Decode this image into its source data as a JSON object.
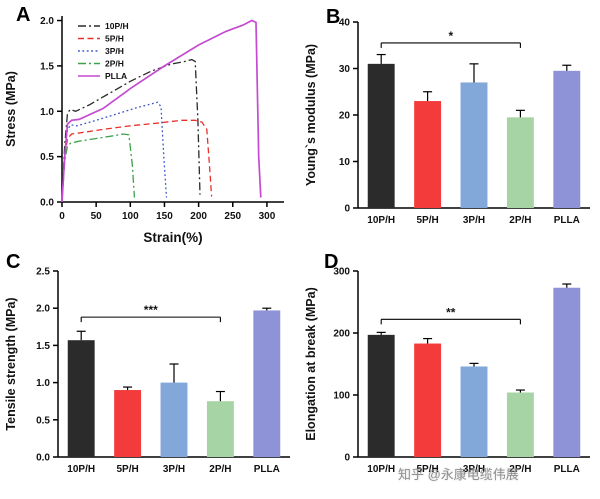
{
  "watermark": "知乎 @永康电缆伟展",
  "panels": [
    {
      "label": "A"
    },
    {
      "label": "B"
    },
    {
      "label": "C"
    },
    {
      "label": "D"
    }
  ],
  "chart_data": [
    {
      "id": "A",
      "type": "line",
      "title": "",
      "xlabel": "Strain(%)",
      "ylabel": "Stress (MPa)",
      "xlim": [
        0,
        325
      ],
      "ylim": [
        0,
        2.05
      ],
      "xticks": [
        0,
        50,
        100,
        150,
        200,
        250,
        300
      ],
      "yticks": [
        0,
        0.5,
        1.0,
        1.5,
        2.0
      ],
      "ydecimals": 1,
      "legend_position": "top-left",
      "series": [
        {
          "name": "10P/H",
          "color": "#2a2a2a",
          "style": "dashdot",
          "x": [
            0,
            4,
            8,
            12,
            20,
            40,
            70,
            100,
            130,
            160,
            180,
            190,
            195,
            199,
            202
          ],
          "y": [
            0,
            0.62,
            0.98,
            1.02,
            1.0,
            1.07,
            1.2,
            1.33,
            1.44,
            1.52,
            1.55,
            1.57,
            1.55,
            0.9,
            0.08
          ]
        },
        {
          "name": "5P/H",
          "color": "#e8302a",
          "style": "dashed",
          "x": [
            0,
            4,
            8,
            14,
            25,
            60,
            100,
            140,
            175,
            195,
            205,
            212,
            216,
            219
          ],
          "y": [
            0,
            0.5,
            0.7,
            0.75,
            0.76,
            0.8,
            0.84,
            0.87,
            0.9,
            0.9,
            0.88,
            0.8,
            0.4,
            0.06
          ]
        },
        {
          "name": "3P/H",
          "color": "#3c56c8",
          "style": "dotted",
          "x": [
            0,
            4,
            8,
            13,
            22,
            50,
            80,
            110,
            130,
            140,
            145,
            149,
            153
          ],
          "y": [
            0,
            0.55,
            0.8,
            0.85,
            0.84,
            0.9,
            0.97,
            1.04,
            1.08,
            1.1,
            1.05,
            0.5,
            0.05
          ]
        },
        {
          "name": "2P/H",
          "color": "#3aa34a",
          "style": "dashdot",
          "x": [
            0,
            4,
            8,
            13,
            25,
            50,
            75,
            90,
            98,
            103,
            106
          ],
          "y": [
            0,
            0.45,
            0.62,
            0.65,
            0.67,
            0.7,
            0.73,
            0.75,
            0.74,
            0.4,
            0.05
          ]
        },
        {
          "name": "PLLA",
          "color": "#c44bd1",
          "style": "solid",
          "x": [
            0,
            4,
            8,
            14,
            25,
            60,
            100,
            150,
            200,
            240,
            265,
            278,
            284,
            288,
            291
          ],
          "y": [
            0,
            0.5,
            0.86,
            0.9,
            0.91,
            1.03,
            1.25,
            1.5,
            1.73,
            1.88,
            1.95,
            2.0,
            1.98,
            0.5,
            0.05
          ]
        }
      ]
    },
    {
      "id": "B",
      "type": "bar",
      "ylabel": "Young`s modulus (MPa)",
      "categories": [
        "10P/H",
        "5P/H",
        "3P/H",
        "2P/H",
        "PLLA"
      ],
      "values": [
        31,
        23,
        27,
        19.5,
        29.5
      ],
      "errors": [
        2,
        2,
        4,
        1.5,
        1.2
      ],
      "colors": [
        "#2b2b2b",
        "#f43b3b",
        "#82a7d9",
        "#a7d4a4",
        "#8e93d8"
      ],
      "ylim": [
        0,
        40
      ],
      "yticks": [
        0,
        10,
        20,
        30,
        40
      ],
      "ydecimals": 0,
      "significance": {
        "from": 0,
        "to": 3,
        "label": "*",
        "y": 35.5
      }
    },
    {
      "id": "C",
      "type": "bar",
      "ylabel": "Tensile strength (MPa)",
      "categories": [
        "10P/H",
        "5P/H",
        "3P/H",
        "2P/H",
        "PLLA"
      ],
      "values": [
        1.57,
        0.9,
        1.0,
        0.75,
        1.97
      ],
      "errors": [
        0.12,
        0.04,
        0.25,
        0.13,
        0.03
      ],
      "colors": [
        "#2b2b2b",
        "#f43b3b",
        "#82a7d9",
        "#a7d4a4",
        "#8e93d8"
      ],
      "ylim": [
        0,
        2.5
      ],
      "yticks": [
        0,
        0.5,
        1.0,
        1.5,
        2.0,
        2.5
      ],
      "ydecimals": 1,
      "significance": {
        "from": 0,
        "to": 3,
        "label": "***",
        "y": 1.88
      }
    },
    {
      "id": "D",
      "type": "bar",
      "ylabel": "Elongation at break (MPa)",
      "categories": [
        "10P/H",
        "5P/H",
        "3P/H",
        "2P/H",
        "PLLA"
      ],
      "values": [
        197,
        183,
        146,
        104,
        273
      ],
      "errors": [
        4,
        8,
        5,
        4,
        6
      ],
      "colors": [
        "#2b2b2b",
        "#f43b3b",
        "#82a7d9",
        "#a7d4a4",
        "#8e93d8"
      ],
      "ylim": [
        0,
        300
      ],
      "yticks": [
        0,
        100,
        200,
        300
      ],
      "ydecimals": 0,
      "significance": {
        "from": 0,
        "to": 3,
        "label": "**",
        "y": 222
      }
    }
  ]
}
